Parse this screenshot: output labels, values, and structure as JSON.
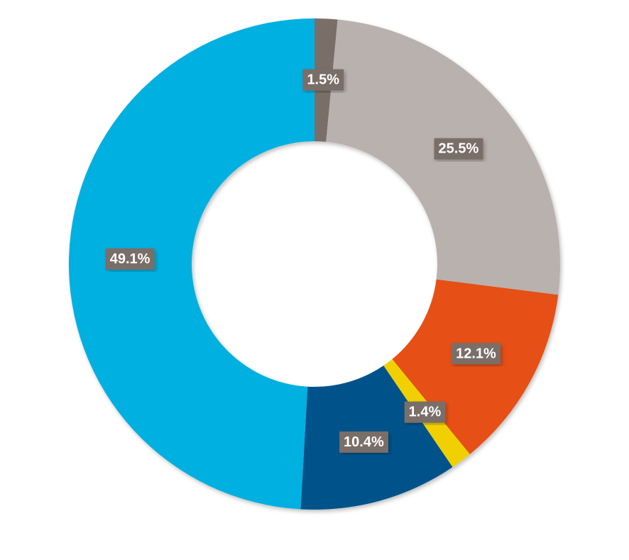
{
  "chart_data": {
    "type": "donut",
    "values": [
      1.5,
      25.5,
      12.1,
      1.4,
      10.4,
      49.1
    ],
    "value_labels": [
      "1.5%",
      "25.5%",
      "12.1%",
      "1.4%",
      "10.4%",
      "49.1%"
    ],
    "colors": [
      "#7a6e68",
      "#b9b1ae",
      "#e65013",
      "#f0d000",
      "#00538a",
      "#00b0e0"
    ]
  }
}
